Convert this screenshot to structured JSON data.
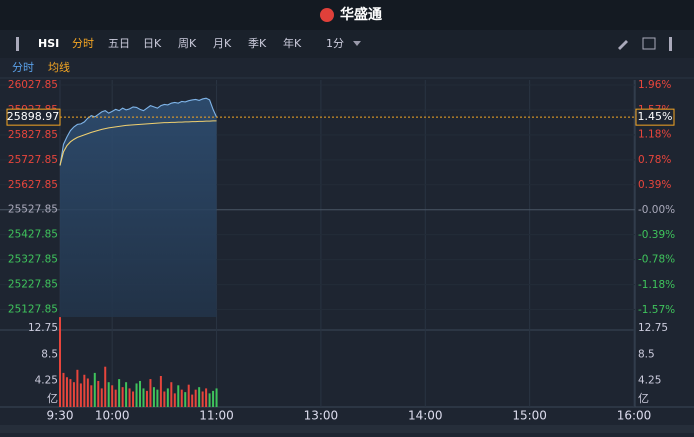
{
  "header": {
    "logo": "华盛通"
  },
  "toolbar": {
    "symbol": "HSI",
    "tabs": [
      "分时",
      "五日",
      "日K",
      "周K",
      "月K",
      "季K",
      "年K"
    ],
    "active_tab": 0,
    "interval": "1分"
  },
  "sub_tabs": [
    "分时",
    "均线"
  ],
  "chart_data": [
    {
      "type": "line",
      "x": [
        0,
        2,
        4,
        6,
        8,
        10,
        12,
        14,
        16,
        18,
        20,
        22,
        24,
        26,
        28,
        30,
        32,
        34,
        36,
        38,
        40,
        42,
        44,
        46,
        48,
        50,
        52,
        54,
        56,
        58,
        60,
        62,
        64,
        66,
        68,
        70,
        72,
        74,
        76,
        78,
        80,
        82,
        84,
        86,
        88,
        90
      ],
      "xlim": [
        0,
        330
      ],
      "series": [
        {
          "name": "分时",
          "color": "#7fb4e8",
          "values": [
            25705,
            25790,
            25820,
            25845,
            25860,
            25870,
            25872,
            25880,
            25895,
            25905,
            25900,
            25910,
            25920,
            25925,
            25915,
            25922,
            25930,
            25925,
            25935,
            25928,
            25932,
            25940,
            25938,
            25930,
            25925,
            25935,
            25945,
            25940,
            25935,
            25945,
            25950,
            25948,
            25955,
            25958,
            25955,
            25962,
            25960,
            25965,
            25968,
            25970,
            25966,
            25972,
            25975,
            25968,
            25930,
            25898.97
          ]
        },
        {
          "name": "均线",
          "color": "#f0d070",
          "values": [
            25705,
            25760,
            25785,
            25800,
            25810,
            25818,
            25823,
            25828,
            25833,
            25838,
            25842,
            25846,
            25850,
            25853,
            25856,
            25858,
            25860,
            25862,
            25864,
            25866,
            25867,
            25868,
            25869,
            25870,
            25871,
            25872,
            25873,
            25874,
            25875,
            25876,
            25877,
            25877,
            25878,
            25878,
            25879,
            25879,
            25880,
            25880,
            25881,
            25881,
            25882,
            25882,
            25883,
            25883,
            25884,
            25884
          ]
        }
      ],
      "ylim": [
        25097.85,
        26027.85
      ],
      "yticks": [
        26027.85,
        25927.85,
        25827.85,
        25727.85,
        25627.85,
        25527.85,
        25427.85,
        25327.85,
        25227.85,
        25127.85
      ],
      "y2lim": [
        -1.68,
        1.96
      ],
      "y2ticks": [
        {
          "value": 1.96,
          "label": "1.96%"
        },
        {
          "value": 1.57,
          "label": "1.57%"
        },
        {
          "value": 1.18,
          "label": "1.18%"
        },
        {
          "value": 0.78,
          "label": "0.78%"
        },
        {
          "value": 0.39,
          "label": "0.39%"
        },
        {
          "value": 0,
          "label": "-0.00%"
        },
        {
          "value": -0.39,
          "label": "-0.39%"
        },
        {
          "value": -0.78,
          "label": "-0.78%"
        },
        {
          "value": -1.18,
          "label": "-1.18%"
        },
        {
          "value": -1.57,
          "label": "-1.57%"
        }
      ],
      "last_price": 25898.97,
      "last_change": {
        "value": 1.45,
        "label": "1.45%"
      }
    },
    {
      "type": "bar",
      "x": [
        0,
        2,
        4,
        6,
        8,
        10,
        12,
        14,
        16,
        18,
        20,
        22,
        24,
        26,
        28,
        30,
        32,
        34,
        36,
        38,
        40,
        42,
        44,
        46,
        48,
        50,
        52,
        54,
        56,
        58,
        60,
        62,
        64,
        66,
        68,
        70,
        72,
        74,
        76,
        78,
        80,
        82,
        84,
        86,
        88,
        90
      ],
      "xlim": [
        0,
        330
      ],
      "xticks": [
        {
          "value": 0,
          "label": "9:30"
        },
        {
          "value": 30,
          "label": "10:00"
        },
        {
          "value": 90,
          "label": "11:00"
        },
        {
          "value": 150,
          "label": "13:00"
        },
        {
          "value": 210,
          "label": "14:00"
        },
        {
          "value": 270,
          "label": "15:00"
        },
        {
          "value": 330,
          "label": "16:00"
        }
      ],
      "values": [
        14.5,
        5.5,
        4.8,
        4.5,
        4.0,
        6.0,
        3.8,
        5.2,
        4.6,
        3.5,
        5.5,
        4.2,
        3.0,
        6.5,
        4.0,
        3.5,
        2.8,
        4.5,
        3.2,
        4.0,
        3.0,
        2.5,
        3.8,
        4.2,
        3.0,
        2.6,
        4.5,
        3.2,
        2.8,
        5.0,
        2.5,
        3.0,
        4.0,
        2.2,
        3.5,
        2.8,
        2.4,
        3.6,
        2.0,
        2.8,
        3.2,
        2.5,
        3.0,
        2.2,
        2.6,
        3.0
      ],
      "ylim": [
        0,
        15
      ],
      "yticks": [
        12.75,
        8.5,
        4.25
      ],
      "unit": "亿"
    }
  ]
}
